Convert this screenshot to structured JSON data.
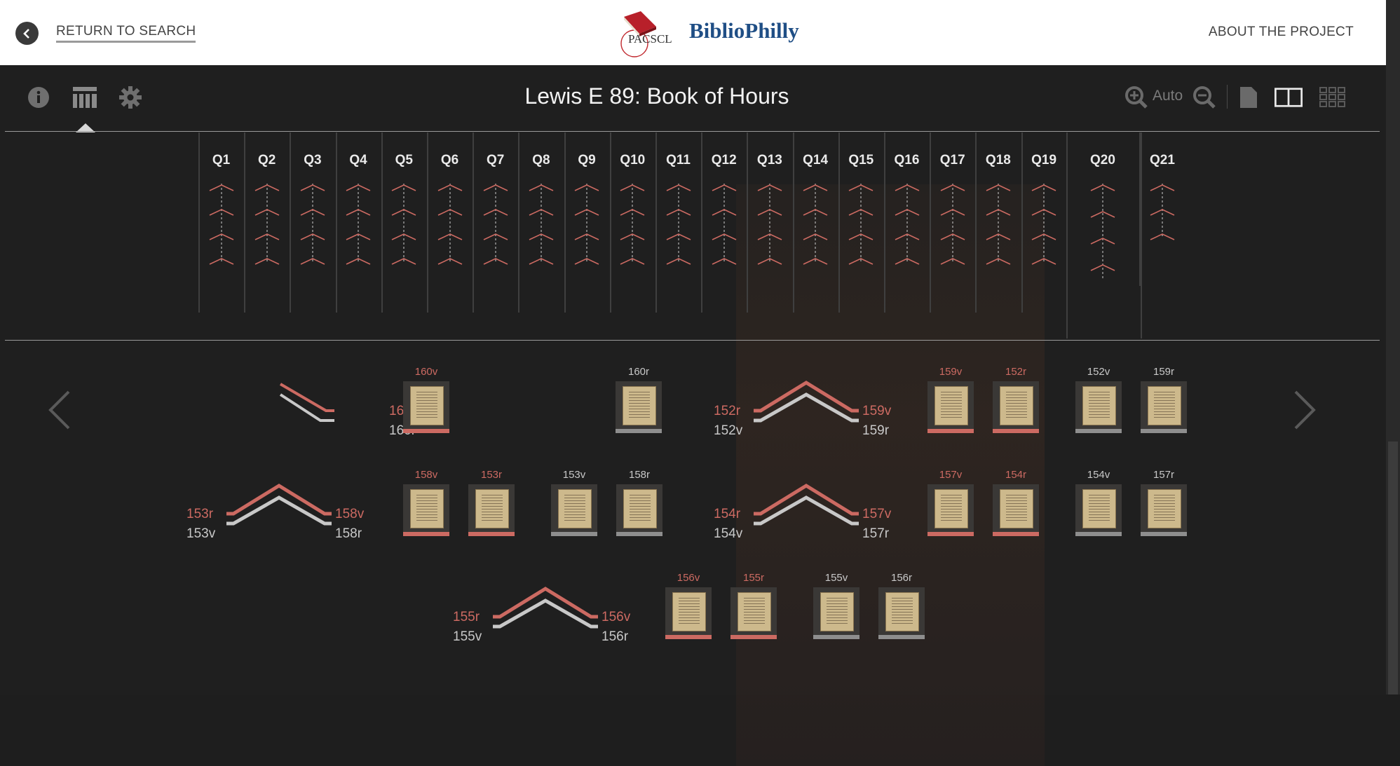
{
  "header": {
    "back_label": "RETURN TO SEARCH",
    "logo_text": "PACSCL",
    "brand": "BiblioPhilly",
    "about_label": "ABOUT THE PROJECT"
  },
  "toolbar": {
    "title": "Lewis E 89: Book of Hours",
    "zoom_label": "Auto",
    "left_icons": [
      "info-icon",
      "grid-icon",
      "gear-icon"
    ],
    "right_icons": [
      "zoom-in-icon",
      "zoom-out-icon",
      "single-page-icon",
      "two-page-icon",
      "thumbnails-icon"
    ]
  },
  "colors": {
    "leaf_red": "#cc6a62",
    "leaf_gray": "#c8c8c8",
    "header_bg": "#ffffff",
    "viewer_bg": "#1f1f1f",
    "brand_blue": "#1f4e85"
  },
  "quires": [
    "Q1",
    "Q2",
    "Q3",
    "Q4",
    "Q5",
    "Q6",
    "Q7",
    "Q8",
    "Q9",
    "Q10",
    "Q11",
    "Q12",
    "Q13",
    "Q14",
    "Q15",
    "Q16",
    "Q17",
    "Q18",
    "Q19",
    "Q20",
    "Q21"
  ],
  "rows": [
    {
      "left_top": "",
      "left_bottom": "",
      "right_top": "160v",
      "right_bottom": "160r",
      "group1": [
        {
          "label": "160v",
          "color": "red"
        }
      ],
      "group2": [
        {
          "label": "160r",
          "color": "gray"
        }
      ]
    },
    {
      "left_top": "152r",
      "left_bottom": "152v",
      "right_top": "159v",
      "right_bottom": "159r",
      "group1": [
        {
          "label": "159v",
          "color": "red"
        },
        {
          "label": "152r",
          "color": "red"
        }
      ],
      "group2": [
        {
          "label": "152v",
          "color": "gray"
        },
        {
          "label": "159r",
          "color": "gray"
        }
      ]
    },
    {
      "left_top": "153r",
      "left_bottom": "153v",
      "right_top": "158v",
      "right_bottom": "158r",
      "group1": [
        {
          "label": "158v",
          "color": "red"
        },
        {
          "label": "153r",
          "color": "red"
        }
      ],
      "group2": [
        {
          "label": "153v",
          "color": "gray"
        },
        {
          "label": "158r",
          "color": "gray"
        }
      ]
    },
    {
      "left_top": "154r",
      "left_bottom": "154v",
      "right_top": "157v",
      "right_bottom": "157r",
      "group1": [
        {
          "label": "157v",
          "color": "red"
        },
        {
          "label": "154r",
          "color": "red"
        }
      ],
      "group2": [
        {
          "label": "154v",
          "color": "gray"
        },
        {
          "label": "157r",
          "color": "gray"
        }
      ]
    },
    {
      "left_top": "155r",
      "left_bottom": "155v",
      "right_top": "156v",
      "right_bottom": "156r",
      "group1": [
        {
          "label": "156v",
          "color": "red"
        },
        {
          "label": "155r",
          "color": "red"
        }
      ],
      "group2": [
        {
          "label": "155v",
          "color": "gray"
        },
        {
          "label": "156r",
          "color": "gray"
        }
      ]
    }
  ]
}
